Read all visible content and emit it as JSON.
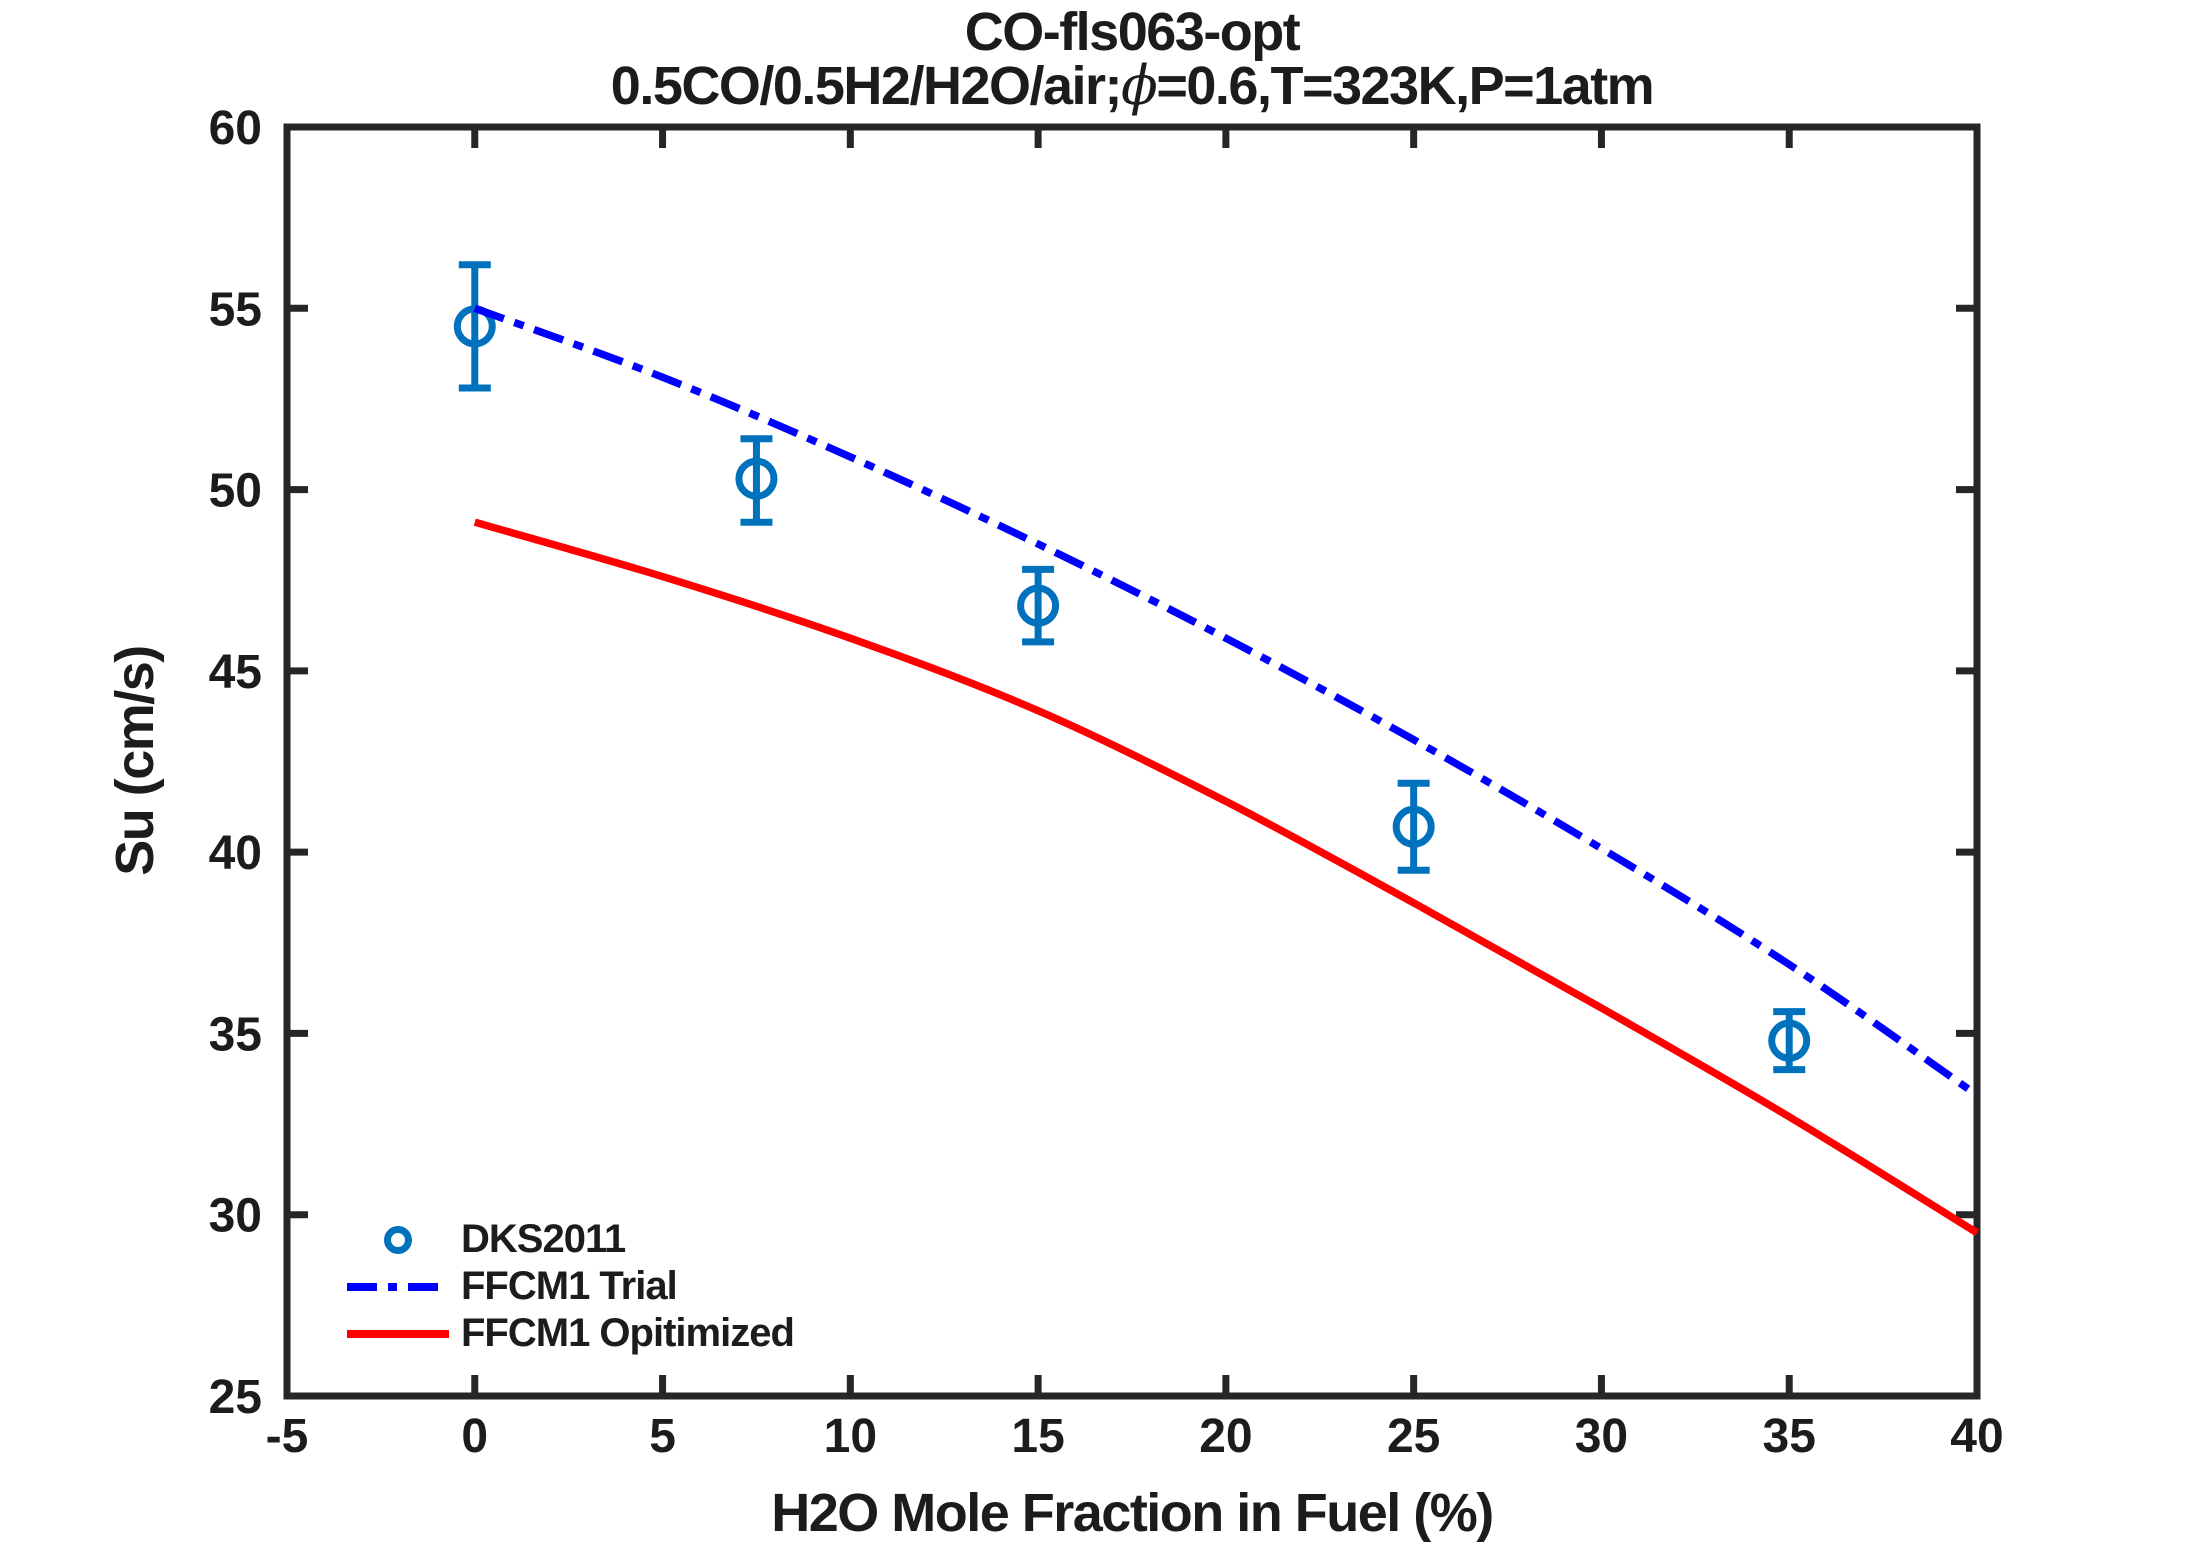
{
  "header": {
    "subtitle_parts": {
      "prefix": "0.5CO/0.5H2/H2O/air;",
      "phi": "ϕ",
      "suffix": "=0.6,T=323K,P=1atm"
    }
  },
  "chart_data": {
    "type": "line",
    "title": "CO-fls063-opt",
    "subtitle": "0.5CO/0.5H2/H2O/air;ϕ=0.6,T=323K,P=1atm",
    "xlabel": "H2O Mole Fraction in Fuel (%)",
    "ylabel": "Su (cm/s)",
    "xlim": [
      -5,
      40
    ],
    "ylim": [
      25,
      60
    ],
    "xticks": [
      -5,
      0,
      5,
      10,
      15,
      20,
      25,
      30,
      35,
      40
    ],
    "yticks": [
      25,
      30,
      35,
      40,
      45,
      50,
      55,
      60
    ],
    "grid": false,
    "box": true,
    "tick_direction": "in",
    "axis_color": "#262626",
    "legend_position": "inside-bottom-left",
    "legend_frame": false,
    "series": [
      {
        "name": "DKS2011",
        "type": "scatter-errorbar",
        "marker": "circle-open",
        "color": "#0072BD",
        "x": [
          0,
          7.5,
          15,
          25,
          35
        ],
        "y": [
          54.5,
          50.3,
          46.8,
          40.7,
          34.8
        ],
        "yerr_plus": [
          1.7,
          1.1,
          1.0,
          1.2,
          0.8
        ],
        "yerr_minus": [
          1.7,
          1.2,
          1.0,
          1.2,
          0.8
        ]
      },
      {
        "name": "FFCM1 Trial",
        "type": "line",
        "style": "dash-dot",
        "color": "#0000FF",
        "x": [
          0,
          5,
          10,
          15,
          20,
          25,
          30,
          35,
          40
        ],
        "y": [
          55.0,
          53.1,
          50.9,
          48.5,
          45.9,
          43.1,
          40.1,
          36.9,
          33.3
        ]
      },
      {
        "name": "FFCM1 Opitimized",
        "type": "line",
        "style": "solid",
        "color": "#FF0000",
        "x": [
          0,
          5,
          10,
          15,
          20,
          25,
          30,
          35,
          40
        ],
        "y": [
          49.1,
          47.6,
          45.9,
          43.9,
          41.4,
          38.6,
          35.7,
          32.7,
          29.5
        ]
      }
    ]
  }
}
